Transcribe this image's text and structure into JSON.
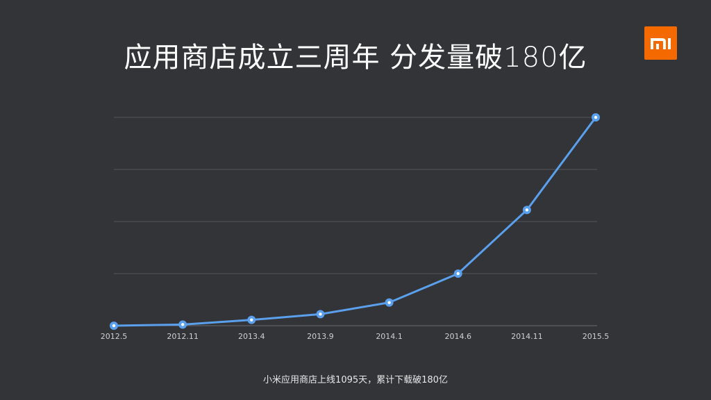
{
  "title": "应用商店成立三周年 分发量破180亿",
  "logo_text": "MI",
  "caption": "小米应用商店上线1095天，累计下载破180亿",
  "colors": {
    "background": "#333438",
    "line": "#5aa0ec",
    "logo": "#f56a00",
    "grid": "#55565a"
  },
  "chart_data": {
    "type": "line",
    "title": "",
    "xlabel": "",
    "ylabel": "",
    "categories": [
      "2012.5",
      "2012.11",
      "2013.4",
      "2013.9",
      "2014.1",
      "2014.6",
      "2014.11",
      "2015.5"
    ],
    "values": [
      0,
      1,
      5,
      10,
      20,
      45,
      100,
      180
    ],
    "ylim": [
      0,
      180
    ],
    "grid": "horizontal",
    "y_tick_labels_shown": false
  }
}
